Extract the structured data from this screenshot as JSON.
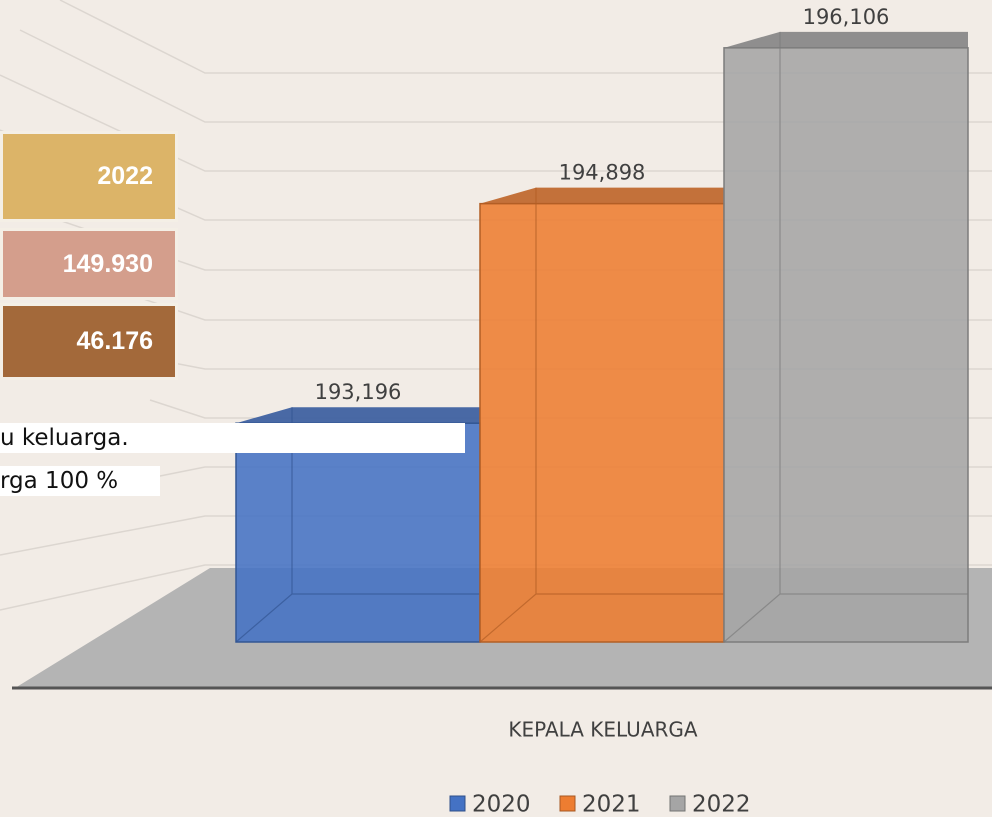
{
  "chart_data": {
    "type": "bar3d",
    "categories": [
      "KEPALA KELUARGA"
    ],
    "series": [
      {
        "name": "2020",
        "color": "#4472c4",
        "values": [
          193196
        ],
        "value_labels": [
          "193,196"
        ]
      },
      {
        "name": "2021",
        "color": "#ed7d31",
        "values": [
          194898
        ],
        "value_labels": [
          "194,898"
        ]
      },
      {
        "name": "2022",
        "color": "#a5a5a5",
        "values": [
          196106
        ],
        "value_labels": [
          "196,106"
        ]
      }
    ],
    "ylim": [
      191500,
      196500
    ],
    "legend": "bottom"
  },
  "table": {
    "rows": [
      [
        "2022"
      ],
      [
        "149.930"
      ],
      [
        "46.176"
      ]
    ]
  },
  "text": {
    "lines": [
      "u keluarga.",
      "rga 100 %"
    ]
  }
}
